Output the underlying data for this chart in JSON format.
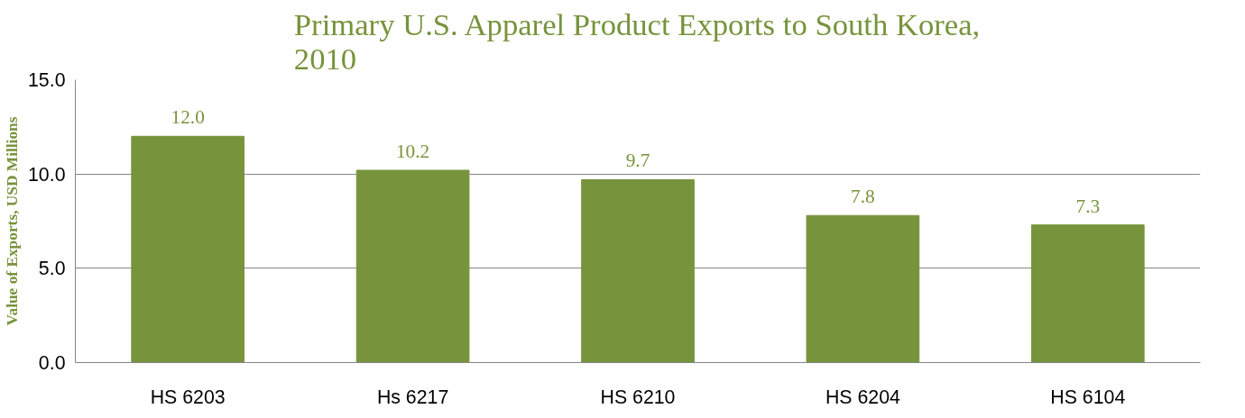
{
  "chart_data": {
    "type": "bar",
    "title": "Primary U.S. Apparel Product Exports to South Korea,\n2010",
    "ylabel": "Value of Exports, USD Millions",
    "categories": [
      "HS 6203",
      "Hs 6217",
      "HS 6210",
      "HS 6204",
      "HS 6104"
    ],
    "values": [
      12.0,
      10.2,
      9.7,
      7.8,
      7.3
    ],
    "color": "#77933c",
    "ylim": [
      0,
      15
    ],
    "yticks": [
      {
        "value": 0,
        "label": "0.0"
      },
      {
        "value": 5,
        "label": "5.0"
      },
      {
        "value": 10,
        "label": "10.0"
      },
      {
        "value": 15,
        "label": "15.0"
      }
    ],
    "grid": "y",
    "value_labels": [
      "12.0",
      "10.2",
      "9.7",
      "7.8",
      "7.3"
    ]
  }
}
